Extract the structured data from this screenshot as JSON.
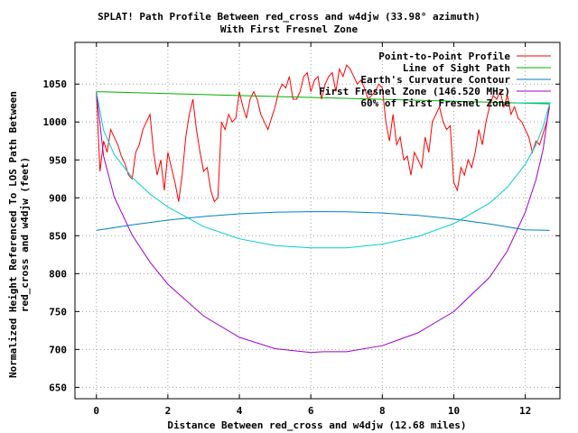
{
  "chart_data": {
    "type": "line",
    "title": "SPLAT! Path Profile Between red_cross and w4djw (33.98° azimuth)",
    "subtitle": "With First Fresnel Zone",
    "xlabel": "Distance Between red_cross and w4djw (12.68 miles)",
    "ylabel_lines": [
      "Normalized Height Referenced To LOS Path Between",
      "red_cross and w4djw (feet)"
    ],
    "xlim": [
      -0.6,
      12.97
    ],
    "ylim": [
      635,
      1105
    ],
    "x_ticks": [
      0,
      2,
      4,
      6,
      8,
      10,
      12
    ],
    "y_ticks": [
      650,
      700,
      750,
      800,
      850,
      900,
      950,
      1000,
      1050
    ],
    "grid": true,
    "legend_position": "top-right",
    "series": [
      {
        "name": "Point-to-Point Profile",
        "color": "#ff0000",
        "x": [
          0,
          0.1,
          0.2,
          0.3,
          0.4,
          0.5,
          0.6,
          0.7,
          0.8,
          0.9,
          1.0,
          1.1,
          1.2,
          1.3,
          1.4,
          1.5,
          1.6,
          1.7,
          1.8,
          1.9,
          2.0,
          2.1,
          2.2,
          2.3,
          2.4,
          2.5,
          2.6,
          2.7,
          2.8,
          2.9,
          3.0,
          3.1,
          3.2,
          3.3,
          3.4,
          3.5,
          3.6,
          3.7,
          3.8,
          3.9,
          4.0,
          4.1,
          4.2,
          4.3,
          4.4,
          4.5,
          4.6,
          4.7,
          4.8,
          4.9,
          5.0,
          5.1,
          5.2,
          5.3,
          5.4,
          5.5,
          5.6,
          5.7,
          5.8,
          5.9,
          6.0,
          6.1,
          6.2,
          6.3,
          6.4,
          6.5,
          6.6,
          6.7,
          6.8,
          6.9,
          7.0,
          7.1,
          7.2,
          7.3,
          7.4,
          7.5,
          7.6,
          7.7,
          7.8,
          7.9,
          8.0,
          8.1,
          8.2,
          8.3,
          8.4,
          8.5,
          8.6,
          8.7,
          8.8,
          8.9,
          9.0,
          9.1,
          9.2,
          9.3,
          9.4,
          9.5,
          9.6,
          9.7,
          9.8,
          9.9,
          10.0,
          10.1,
          10.2,
          10.3,
          10.4,
          10.5,
          10.6,
          10.7,
          10.8,
          10.9,
          11.0,
          11.1,
          11.2,
          11.3,
          11.4,
          11.5,
          11.6,
          11.7,
          11.8,
          11.9,
          12.0,
          12.1,
          12.2,
          12.3,
          12.4,
          12.5,
          12.6,
          12.68
        ],
        "y": [
          1040,
          935,
          975,
          960,
          990,
          980,
          970,
          955,
          945,
          930,
          925,
          960,
          970,
          990,
          1000,
          1010,
          960,
          930,
          950,
          910,
          960,
          940,
          920,
          895,
          930,
          980,
          1010,
          1030,
          990,
          960,
          935,
          940,
          910,
          895,
          900,
          1000,
          990,
          1010,
          1000,
          1005,
          1040,
          1020,
          1005,
          1030,
          1040,
          1030,
          1010,
          1000,
          990,
          1005,
          1020,
          1040,
          1050,
          1045,
          1060,
          1030,
          1030,
          1040,
          1060,
          1065,
          1040,
          1055,
          1060,
          1030,
          1050,
          1060,
          1065,
          1040,
          1070,
          1060,
          1075,
          1070,
          1060,
          1050,
          1055,
          1045,
          1030,
          1035,
          1040,
          1050,
          1045,
          1000,
          975,
          1010,
          970,
          980,
          950,
          955,
          930,
          960,
          950,
          940,
          980,
          960,
          1000,
          1010,
          1020,
          1000,
          990,
          995,
          920,
          910,
          940,
          930,
          950,
          940,
          960,
          990,
          970,
          1000,
          1020,
          1035,
          1030,
          1040,
          1020,
          1035,
          1010,
          1020,
          1005,
          1000,
          990,
          980,
          960,
          975,
          970,
          985,
          1000,
          1020
        ]
      },
      {
        "name": "Line of Sight Path",
        "color": "#00b000",
        "x": [
          0,
          12.68
        ],
        "y": [
          1040,
          1024
        ]
      },
      {
        "name": "Earth's Curvature Contour",
        "color": "#0080c0",
        "x": [
          0,
          1,
          2,
          3,
          4,
          5,
          6,
          6.34,
          7,
          8,
          9,
          10,
          11,
          12,
          12.68
        ],
        "y": [
          857.0,
          864.4,
          870.6,
          875.4,
          878.9,
          881.0,
          881.8,
          881.8,
          881.5,
          880.0,
          876.8,
          872.0,
          865.5,
          857.8,
          857.0
        ]
      },
      {
        "name": "First Fresnel Zone (146.520 MHz)",
        "color": "#a000d0",
        "x": [
          0,
          0.2,
          0.5,
          1,
          1.5,
          2,
          3,
          4,
          5,
          6,
          6.34,
          7,
          8,
          9,
          10,
          11,
          11.5,
          12,
          12.3,
          12.5,
          12.68
        ],
        "y": [
          1040,
          955,
          901,
          851,
          815,
          786,
          744,
          716,
          701,
          696,
          697,
          697,
          705,
          722,
          750,
          795,
          830,
          881,
          924,
          964,
          1024
        ]
      },
      {
        "name": "60% of First Fresnel Zone",
        "color": "#00d0d0",
        "x": [
          0,
          0.2,
          0.5,
          1,
          1.5,
          2,
          3,
          4,
          5,
          6,
          6.34,
          7,
          8,
          9,
          10,
          11,
          11.5,
          12,
          12.3,
          12.5,
          12.68
        ],
        "y": [
          1040,
          989,
          957,
          927,
          905,
          888,
          862,
          846,
          837,
          834,
          834,
          834,
          839,
          849,
          866,
          893,
          914,
          944,
          970,
          994,
          1024
        ]
      }
    ]
  }
}
